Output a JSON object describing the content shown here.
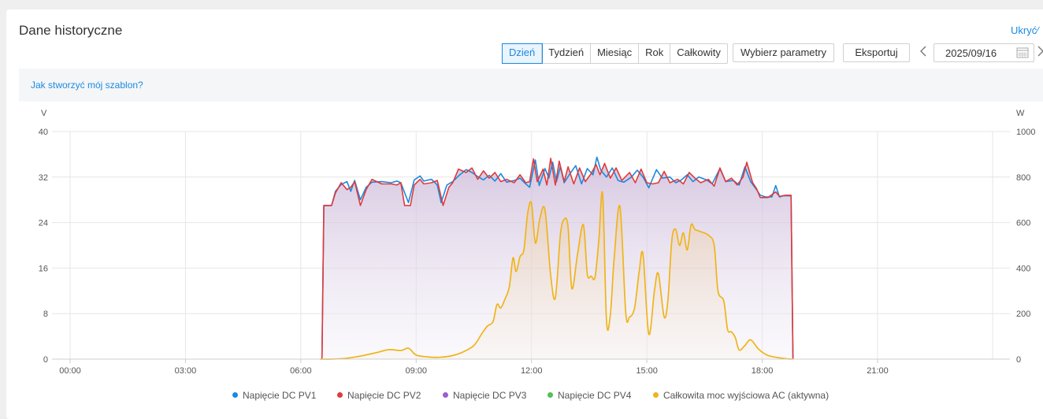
{
  "header": {
    "title": "Dane historyczne",
    "hide_link": "Ukryć∕"
  },
  "toolbar": {
    "periods": [
      "Dzień",
      "Tydzień",
      "Miesiąc",
      "Rok",
      "Całkowity"
    ],
    "active_period": "Dzień",
    "select_params_label": "Wybierz parametry",
    "export_label": "Eksportuj",
    "prev_icon": "chevron-left-icon",
    "next_icon": "chevron-right-icon",
    "date_value": "2025/09/16",
    "calendar_icon": "calendar-icon"
  },
  "info": {
    "template_link": "Jak stworzyć mój szablon?"
  },
  "colors": {
    "pv1": "#1a8ae0",
    "pv2": "#e03a3a",
    "pv3": "#9b5fd0",
    "pv4": "#52c05a",
    "ac": "#f0b418",
    "accent": "#1a8ae0"
  },
  "chart_data": {
    "type": "line",
    "left_axis": {
      "unit": "V",
      "range": [
        0,
        40
      ],
      "ticks": [
        "0",
        "8",
        "16",
        "24",
        "32",
        "40"
      ]
    },
    "right_axis": {
      "unit": "W",
      "range": [
        0,
        1000
      ],
      "ticks": [
        "0",
        "200",
        "400",
        "600",
        "800",
        "1000"
      ]
    },
    "x_axis": {
      "range_hours": [
        0,
        24
      ],
      "ticks": [
        "00:00",
        "03:00",
        "06:00",
        "09:00",
        "12:00",
        "15:00",
        "18:00",
        "21:00"
      ]
    },
    "grid": true,
    "legend_position": "bottom",
    "series": [
      {
        "name": "Napięcie DC PV1",
        "axis": "left",
        "color": "#1a8ae0",
        "points": [
          [
            6.55,
            0
          ],
          [
            6.6,
            27
          ],
          [
            6.8,
            27
          ],
          [
            6.9,
            29.5
          ],
          [
            7.05,
            30.7
          ],
          [
            7.2,
            31.2
          ],
          [
            7.3,
            29.5
          ],
          [
            7.4,
            31.4
          ],
          [
            7.55,
            28
          ],
          [
            7.7,
            30.2
          ],
          [
            7.85,
            31.1
          ],
          [
            8.1,
            31.2
          ],
          [
            8.35,
            31.0
          ],
          [
            8.5,
            31.3
          ],
          [
            8.6,
            31.0
          ],
          [
            8.8,
            27.5
          ],
          [
            8.95,
            31.5
          ],
          [
            9.1,
            32.2
          ],
          [
            9.2,
            31.3
          ],
          [
            9.4,
            31.6
          ],
          [
            9.55,
            30.6
          ],
          [
            9.65,
            27.5
          ],
          [
            9.8,
            30.6
          ],
          [
            9.95,
            31.2
          ],
          [
            10.1,
            32.2
          ],
          [
            10.3,
            33.3
          ],
          [
            10.45,
            32.8
          ],
          [
            10.6,
            32.1
          ],
          [
            10.75,
            31.5
          ],
          [
            10.9,
            32.3
          ],
          [
            11.05,
            31.3
          ],
          [
            11.2,
            32.6
          ],
          [
            11.35,
            31.1
          ],
          [
            11.55,
            31.4
          ],
          [
            11.7,
            31.8
          ],
          [
            11.85,
            30.8
          ],
          [
            11.95,
            30.2
          ],
          [
            12.1,
            35.0
          ],
          [
            12.2,
            30.5
          ],
          [
            12.35,
            33.5
          ],
          [
            12.45,
            31.8
          ],
          [
            12.55,
            34.6
          ],
          [
            12.65,
            31.2
          ],
          [
            12.75,
            33.8
          ],
          [
            12.85,
            31.0
          ],
          [
            13.0,
            32.6
          ],
          [
            13.15,
            34.0
          ],
          [
            13.3,
            30.8
          ],
          [
            13.45,
            33.5
          ],
          [
            13.6,
            32.4
          ],
          [
            13.7,
            35.5
          ],
          [
            13.8,
            33.2
          ],
          [
            13.95,
            32.0
          ],
          [
            14.1,
            33.6
          ],
          [
            14.25,
            31.4
          ],
          [
            14.4,
            31.1
          ],
          [
            14.6,
            32.0
          ],
          [
            14.75,
            33.2
          ],
          [
            14.9,
            32.0
          ],
          [
            15.05,
            30.1
          ],
          [
            15.25,
            33.3
          ],
          [
            15.4,
            31.8
          ],
          [
            15.6,
            32.0
          ],
          [
            15.75,
            31.0
          ],
          [
            15.9,
            31.5
          ],
          [
            16.05,
            32.4
          ],
          [
            16.2,
            31.2
          ],
          [
            16.35,
            32.0
          ],
          [
            16.55,
            31.5
          ],
          [
            16.7,
            30.8
          ],
          [
            16.9,
            33.5
          ],
          [
            17.05,
            31.2
          ],
          [
            17.25,
            31.4
          ],
          [
            17.4,
            30.6
          ],
          [
            17.55,
            33.8
          ],
          [
            17.7,
            31.2
          ],
          [
            17.85,
            29.8
          ],
          [
            17.95,
            28.8
          ],
          [
            18.1,
            28.5
          ],
          [
            18.25,
            28.5
          ],
          [
            18.35,
            30.5
          ],
          [
            18.45,
            28.5
          ],
          [
            18.55,
            28.7
          ],
          [
            18.75,
            28.7
          ],
          [
            18.8,
            0
          ]
        ]
      },
      {
        "name": "Napięcie DC PV2",
        "axis": "left",
        "color": "#e03a3a",
        "points": [
          [
            6.55,
            0
          ],
          [
            6.6,
            27
          ],
          [
            6.8,
            27
          ],
          [
            6.9,
            29.2
          ],
          [
            7.05,
            31.0
          ],
          [
            7.2,
            29.8
          ],
          [
            7.3,
            30.2
          ],
          [
            7.4,
            31.2
          ],
          [
            7.55,
            27
          ],
          [
            7.7,
            29.8
          ],
          [
            7.85,
            31.6
          ],
          [
            8.1,
            30.8
          ],
          [
            8.35,
            30.8
          ],
          [
            8.5,
            30.6
          ],
          [
            8.6,
            31.0
          ],
          [
            8.7,
            27
          ],
          [
            8.85,
            27
          ],
          [
            8.95,
            30.6
          ],
          [
            9.1,
            31.6
          ],
          [
            9.2,
            30.8
          ],
          [
            9.4,
            31.0
          ],
          [
            9.55,
            31.4
          ],
          [
            9.7,
            27
          ],
          [
            9.85,
            30.2
          ],
          [
            9.95,
            31.0
          ],
          [
            10.1,
            33.4
          ],
          [
            10.3,
            32.8
          ],
          [
            10.45,
            33.6
          ],
          [
            10.6,
            31.6
          ],
          [
            10.75,
            33.1
          ],
          [
            10.9,
            31.8
          ],
          [
            11.05,
            32.8
          ],
          [
            11.2,
            31.2
          ],
          [
            11.35,
            31.6
          ],
          [
            11.55,
            31.0
          ],
          [
            11.7,
            32.4
          ],
          [
            11.85,
            31.0
          ],
          [
            11.95,
            31.2
          ],
          [
            12.05,
            35.2
          ],
          [
            12.15,
            31.2
          ],
          [
            12.3,
            33.4
          ],
          [
            12.4,
            30.6
          ],
          [
            12.5,
            35.3
          ],
          [
            12.62,
            30.6
          ],
          [
            12.72,
            34.8
          ],
          [
            12.85,
            31.2
          ],
          [
            12.95,
            33.8
          ],
          [
            13.1,
            30.8
          ],
          [
            13.25,
            33.6
          ],
          [
            13.4,
            31.2
          ],
          [
            13.55,
            32.6
          ],
          [
            13.68,
            34.2
          ],
          [
            13.78,
            32.4
          ],
          [
            13.9,
            34.4
          ],
          [
            14.05,
            31.8
          ],
          [
            14.2,
            33.6
          ],
          [
            14.35,
            31.4
          ],
          [
            14.55,
            32.8
          ],
          [
            14.7,
            31.0
          ],
          [
            14.85,
            33.4
          ],
          [
            15.0,
            31.0
          ],
          [
            15.15,
            30.8
          ],
          [
            15.3,
            31.0
          ],
          [
            15.45,
            33.0
          ],
          [
            15.6,
            31.0
          ],
          [
            15.8,
            31.6
          ],
          [
            15.95,
            30.8
          ],
          [
            16.1,
            32.8
          ],
          [
            16.25,
            31.8
          ],
          [
            16.4,
            31.0
          ],
          [
            16.6,
            31.6
          ],
          [
            16.75,
            30.4
          ],
          [
            16.9,
            33.6
          ],
          [
            17.05,
            31.2
          ],
          [
            17.2,
            31.8
          ],
          [
            17.35,
            30.6
          ],
          [
            17.5,
            32.0
          ],
          [
            17.6,
            34.6
          ],
          [
            17.75,
            31.0
          ],
          [
            17.85,
            30.0
          ],
          [
            17.95,
            28.4
          ],
          [
            18.15,
            28.4
          ],
          [
            18.35,
            29.4
          ],
          [
            18.45,
            28.6
          ],
          [
            18.6,
            28.8
          ],
          [
            18.75,
            28.8
          ],
          [
            18.8,
            0
          ]
        ]
      },
      {
        "name": "Napięcie DC PV3",
        "axis": "left",
        "color": "#9b5fd0",
        "points": []
      },
      {
        "name": "Napięcie DC PV4",
        "axis": "left",
        "color": "#52c05a",
        "points": []
      },
      {
        "name": "Całkowita moc wyjściowa AC (aktywna)",
        "axis": "right",
        "color": "#f0b418",
        "points": [
          [
            6.5,
            0
          ],
          [
            6.8,
            0
          ],
          [
            7.2,
            4
          ],
          [
            7.6,
            15
          ],
          [
            8.0,
            30
          ],
          [
            8.3,
            42
          ],
          [
            8.6,
            38
          ],
          [
            8.8,
            48
          ],
          [
            9.0,
            18
          ],
          [
            9.3,
            10
          ],
          [
            9.6,
            8
          ],
          [
            9.9,
            14
          ],
          [
            10.2,
            30
          ],
          [
            10.5,
            60
          ],
          [
            10.7,
            110
          ],
          [
            10.85,
            145
          ],
          [
            11.0,
            165
          ],
          [
            11.1,
            240
          ],
          [
            11.2,
            225
          ],
          [
            11.3,
            260
          ],
          [
            11.42,
            315
          ],
          [
            11.52,
            445
          ],
          [
            11.6,
            385
          ],
          [
            11.7,
            450
          ],
          [
            11.8,
            480
          ],
          [
            11.9,
            640
          ],
          [
            12.0,
            685
          ],
          [
            12.1,
            510
          ],
          [
            12.22,
            620
          ],
          [
            12.35,
            655
          ],
          [
            12.5,
            365
          ],
          [
            12.62,
            270
          ],
          [
            12.75,
            545
          ],
          [
            12.85,
            615
          ],
          [
            12.95,
            580
          ],
          [
            13.05,
            310
          ],
          [
            13.2,
            465
          ],
          [
            13.35,
            590
          ],
          [
            13.45,
            375
          ],
          [
            13.55,
            365
          ],
          [
            13.65,
            360
          ],
          [
            13.75,
            520
          ],
          [
            13.85,
            725
          ],
          [
            13.95,
            170
          ],
          [
            14.05,
            195
          ],
          [
            14.15,
            445
          ],
          [
            14.3,
            670
          ],
          [
            14.45,
            205
          ],
          [
            14.55,
            185
          ],
          [
            14.68,
            225
          ],
          [
            14.8,
            385
          ],
          [
            14.9,
            460
          ],
          [
            15.05,
            110
          ],
          [
            15.2,
            305
          ],
          [
            15.3,
            375
          ],
          [
            15.45,
            185
          ],
          [
            15.55,
            265
          ],
          [
            15.65,
            525
          ],
          [
            15.75,
            570
          ],
          [
            15.85,
            500
          ],
          [
            15.95,
            555
          ],
          [
            16.05,
            480
          ],
          [
            16.15,
            590
          ],
          [
            16.25,
            570
          ],
          [
            16.4,
            560
          ],
          [
            16.6,
            545
          ],
          [
            16.75,
            500
          ],
          [
            16.85,
            300
          ],
          [
            17.0,
            255
          ],
          [
            17.1,
            130
          ],
          [
            17.2,
            120
          ],
          [
            17.3,
            95
          ],
          [
            17.4,
            40
          ],
          [
            17.55,
            60
          ],
          [
            17.7,
            85
          ],
          [
            17.9,
            45
          ],
          [
            18.1,
            20
          ],
          [
            18.3,
            10
          ],
          [
            18.6,
            2
          ],
          [
            18.8,
            0
          ]
        ]
      }
    ]
  },
  "legend": [
    {
      "label": "Napięcie DC PV1",
      "color": "#1a8ae0"
    },
    {
      "label": "Napięcie DC PV2",
      "color": "#e03a3a"
    },
    {
      "label": "Napięcie DC PV3",
      "color": "#9b5fd0"
    },
    {
      "label": "Napięcie DC PV4",
      "color": "#52c05a"
    },
    {
      "label": "Całkowita moc wyjściowa AC (aktywna)",
      "color": "#f0b418"
    }
  ]
}
